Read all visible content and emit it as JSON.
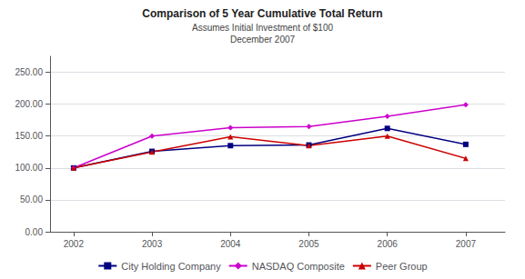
{
  "chart_data": {
    "type": "line",
    "title": "Comparison of 5 Year Cumulative Total Return",
    "subtitle": "Assumes Initial Investment of $100\nDecember 2007",
    "x": [
      2002,
      2003,
      2004,
      2005,
      2006,
      2007
    ],
    "series": [
      {
        "name": "City Holding Company",
        "color": "#000080",
        "marker": "square",
        "values": [
          100.0,
          126.0,
          135.0,
          136.0,
          162.0,
          137.0
        ]
      },
      {
        "name": "NASDAQ Composite",
        "color": "#cc00cc",
        "marker": "diamond",
        "values": [
          100.0,
          150.0,
          163.0,
          165.0,
          181.0,
          199.0
        ]
      },
      {
        "name": "Peer Group",
        "color": "#cc0000",
        "marker": "triangle",
        "values": [
          100.0,
          125.0,
          149.0,
          135.0,
          150.0,
          115.0
        ]
      }
    ],
    "xlim": [
      2001.7,
      2007.5
    ],
    "xticks": [
      2002,
      2003,
      2004,
      2005,
      2006,
      2007
    ],
    "ylim": [
      0,
      275
    ],
    "yticks": [
      {
        "value": 0,
        "label": "0.00"
      },
      {
        "value": 50,
        "label": "50.00"
      },
      {
        "value": 100,
        "label": "100.00"
      },
      {
        "value": 150,
        "label": "150.00"
      },
      {
        "value": 200,
        "label": "200.00"
      },
      {
        "value": 250,
        "label": "250.00"
      }
    ],
    "grid": true,
    "legend": "bottom"
  }
}
